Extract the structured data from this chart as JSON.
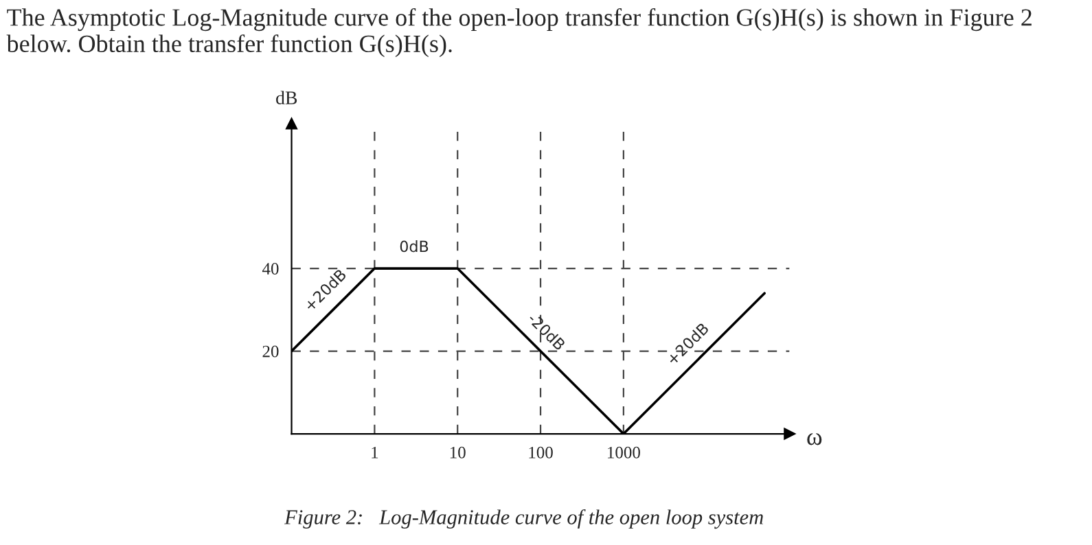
{
  "chart_data": {
    "type": "line",
    "title": "The Asymptotic Log-Magnitude curve of the open-loop transfer function G(s)H(s) is shown in Figure 2 below. Obtain the transfer function G(s)H(s).",
    "xlabel": "ω",
    "ylabel": "dB",
    "log": "x",
    "x": [
      0.1,
      1,
      10,
      1000,
      50000
    ],
    "series": [
      {
        "color": "#000000",
        "values": [
          20,
          40,
          40,
          0,
          34
        ]
      }
    ],
    "xlim": [
      0.1,
      100000
    ],
    "ylim": [
      0,
      75
    ],
    "xticks": [
      1,
      10,
      100,
      1000
    ],
    "yticks": [
      20,
      40
    ],
    "grid": true,
    "marker": "none",
    "line_style": "solid",
    "annotations": [
      {
        "text": "+20dB",
        "x": 0.3,
        "y": 30
      },
      {
        "text": "0dB",
        "x": 3,
        "y": 40
      },
      {
        "text": "-20dB",
        "x": 100,
        "y": 20
      },
      {
        "text": "+20dB",
        "x": 7000,
        "y": 17
      },
      "Figure 2:   Log-Magnitude curve of the open loop system"
    ]
  }
}
